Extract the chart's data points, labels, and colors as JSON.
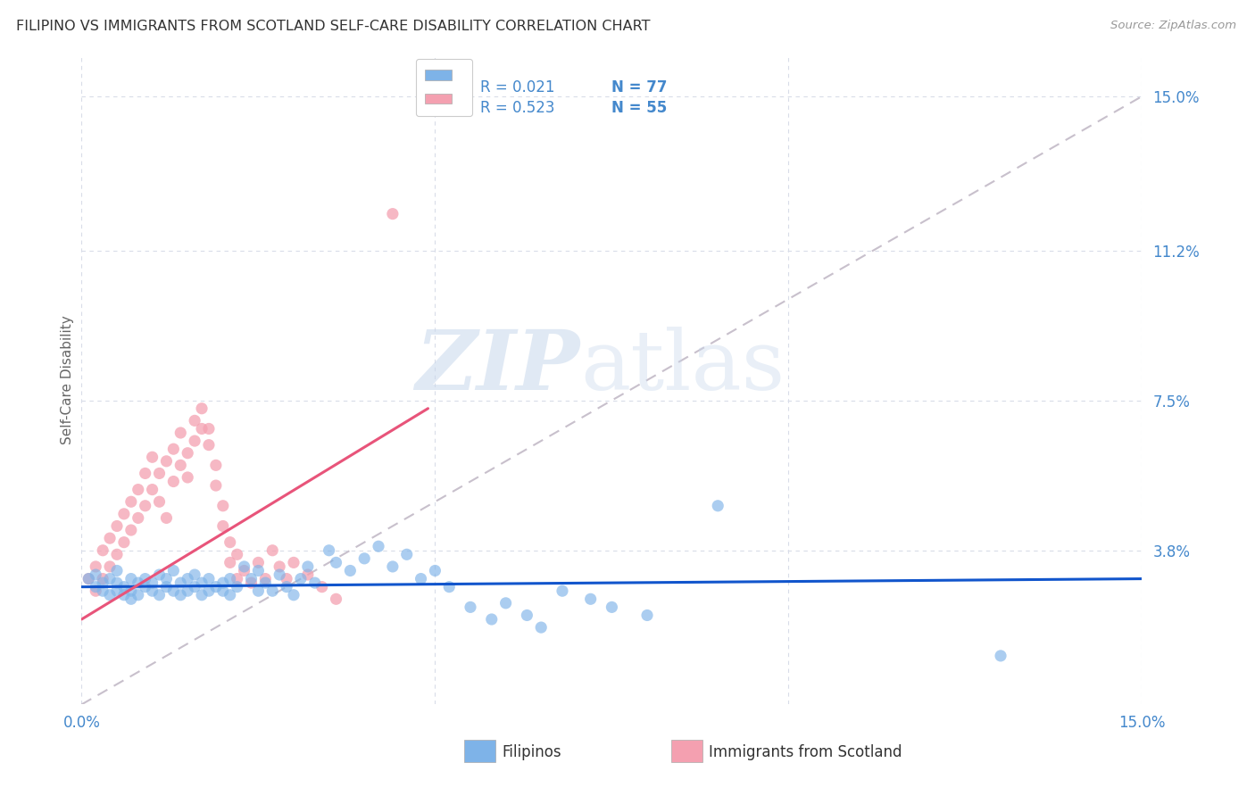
{
  "title": "FILIPINO VS IMMIGRANTS FROM SCOTLAND SELF-CARE DISABILITY CORRELATION CHART",
  "source": "Source: ZipAtlas.com",
  "ylabel": "Self-Care Disability",
  "xlim": [
    0.0,
    0.15
  ],
  "ylim": [
    0.0,
    0.16
  ],
  "y_tick_right_vals": [
    0.038,
    0.075,
    0.112,
    0.15
  ],
  "y_tick_right_labels": [
    "3.8%",
    "7.5%",
    "11.2%",
    "15.0%"
  ],
  "blue_color": "#7EB3E8",
  "pink_color": "#F4A0B0",
  "line_blue_color": "#1155CC",
  "line_pink_color": "#E8547A",
  "dashed_line_color": "#C8C0CC",
  "axis_color": "#4488CC",
  "grid_color": "#D8DCE8",
  "filipinos_scatter": [
    [
      0.001,
      0.031
    ],
    [
      0.002,
      0.029
    ],
    [
      0.002,
      0.032
    ],
    [
      0.003,
      0.028
    ],
    [
      0.003,
      0.03
    ],
    [
      0.004,
      0.027
    ],
    [
      0.004,
      0.031
    ],
    [
      0.005,
      0.028
    ],
    [
      0.005,
      0.03
    ],
    [
      0.005,
      0.033
    ],
    [
      0.006,
      0.027
    ],
    [
      0.006,
      0.029
    ],
    [
      0.007,
      0.028
    ],
    [
      0.007,
      0.031
    ],
    [
      0.007,
      0.026
    ],
    [
      0.008,
      0.03
    ],
    [
      0.008,
      0.027
    ],
    [
      0.009,
      0.029
    ],
    [
      0.009,
      0.031
    ],
    [
      0.01,
      0.028
    ],
    [
      0.01,
      0.03
    ],
    [
      0.011,
      0.032
    ],
    [
      0.011,
      0.027
    ],
    [
      0.012,
      0.029
    ],
    [
      0.012,
      0.031
    ],
    [
      0.013,
      0.028
    ],
    [
      0.013,
      0.033
    ],
    [
      0.014,
      0.03
    ],
    [
      0.014,
      0.027
    ],
    [
      0.015,
      0.031
    ],
    [
      0.015,
      0.028
    ],
    [
      0.016,
      0.032
    ],
    [
      0.016,
      0.029
    ],
    [
      0.017,
      0.027
    ],
    [
      0.017,
      0.03
    ],
    [
      0.018,
      0.028
    ],
    [
      0.018,
      0.031
    ],
    [
      0.019,
      0.029
    ],
    [
      0.02,
      0.03
    ],
    [
      0.02,
      0.028
    ],
    [
      0.021,
      0.027
    ],
    [
      0.021,
      0.031
    ],
    [
      0.022,
      0.029
    ],
    [
      0.023,
      0.034
    ],
    [
      0.024,
      0.031
    ],
    [
      0.025,
      0.028
    ],
    [
      0.025,
      0.033
    ],
    [
      0.026,
      0.03
    ],
    [
      0.027,
      0.028
    ],
    [
      0.028,
      0.032
    ],
    [
      0.029,
      0.029
    ],
    [
      0.03,
      0.027
    ],
    [
      0.031,
      0.031
    ],
    [
      0.032,
      0.034
    ],
    [
      0.033,
      0.03
    ],
    [
      0.035,
      0.038
    ],
    [
      0.036,
      0.035
    ],
    [
      0.038,
      0.033
    ],
    [
      0.04,
      0.036
    ],
    [
      0.042,
      0.039
    ],
    [
      0.044,
      0.034
    ],
    [
      0.046,
      0.037
    ],
    [
      0.048,
      0.031
    ],
    [
      0.05,
      0.033
    ],
    [
      0.052,
      0.029
    ],
    [
      0.055,
      0.024
    ],
    [
      0.058,
      0.021
    ],
    [
      0.06,
      0.025
    ],
    [
      0.063,
      0.022
    ],
    [
      0.065,
      0.019
    ],
    [
      0.068,
      0.028
    ],
    [
      0.072,
      0.026
    ],
    [
      0.075,
      0.024
    ],
    [
      0.08,
      0.022
    ],
    [
      0.09,
      0.049
    ],
    [
      0.13,
      0.012
    ]
  ],
  "scotland_scatter": [
    [
      0.001,
      0.031
    ],
    [
      0.002,
      0.028
    ],
    [
      0.002,
      0.034
    ],
    [
      0.003,
      0.031
    ],
    [
      0.003,
      0.038
    ],
    [
      0.004,
      0.034
    ],
    [
      0.004,
      0.041
    ],
    [
      0.005,
      0.037
    ],
    [
      0.005,
      0.044
    ],
    [
      0.006,
      0.04
    ],
    [
      0.006,
      0.047
    ],
    [
      0.007,
      0.043
    ],
    [
      0.007,
      0.05
    ],
    [
      0.008,
      0.046
    ],
    [
      0.008,
      0.053
    ],
    [
      0.009,
      0.049
    ],
    [
      0.009,
      0.057
    ],
    [
      0.01,
      0.053
    ],
    [
      0.01,
      0.061
    ],
    [
      0.011,
      0.057
    ],
    [
      0.011,
      0.05
    ],
    [
      0.012,
      0.046
    ],
    [
      0.012,
      0.06
    ],
    [
      0.013,
      0.055
    ],
    [
      0.013,
      0.063
    ],
    [
      0.014,
      0.059
    ],
    [
      0.014,
      0.067
    ],
    [
      0.015,
      0.062
    ],
    [
      0.015,
      0.056
    ],
    [
      0.016,
      0.065
    ],
    [
      0.016,
      0.07
    ],
    [
      0.017,
      0.068
    ],
    [
      0.017,
      0.073
    ],
    [
      0.018,
      0.068
    ],
    [
      0.018,
      0.064
    ],
    [
      0.019,
      0.059
    ],
    [
      0.019,
      0.054
    ],
    [
      0.02,
      0.049
    ],
    [
      0.02,
      0.044
    ],
    [
      0.021,
      0.04
    ],
    [
      0.021,
      0.035
    ],
    [
      0.022,
      0.031
    ],
    [
      0.022,
      0.037
    ],
    [
      0.023,
      0.033
    ],
    [
      0.024,
      0.03
    ],
    [
      0.025,
      0.035
    ],
    [
      0.026,
      0.031
    ],
    [
      0.027,
      0.038
    ],
    [
      0.028,
      0.034
    ],
    [
      0.029,
      0.031
    ],
    [
      0.03,
      0.035
    ],
    [
      0.032,
      0.032
    ],
    [
      0.034,
      0.029
    ],
    [
      0.036,
      0.026
    ],
    [
      0.044,
      0.121
    ]
  ],
  "filipinos_trend_x": [
    0.0,
    0.15
  ],
  "filipinos_trend_y": [
    0.029,
    0.031
  ],
  "scotland_trend_x": [
    0.0,
    0.049
  ],
  "scotland_trend_y": [
    0.021,
    0.073
  ],
  "dashed_trend_x": [
    0.0,
    0.15
  ],
  "dashed_trend_y": [
    0.0,
    0.15
  ]
}
